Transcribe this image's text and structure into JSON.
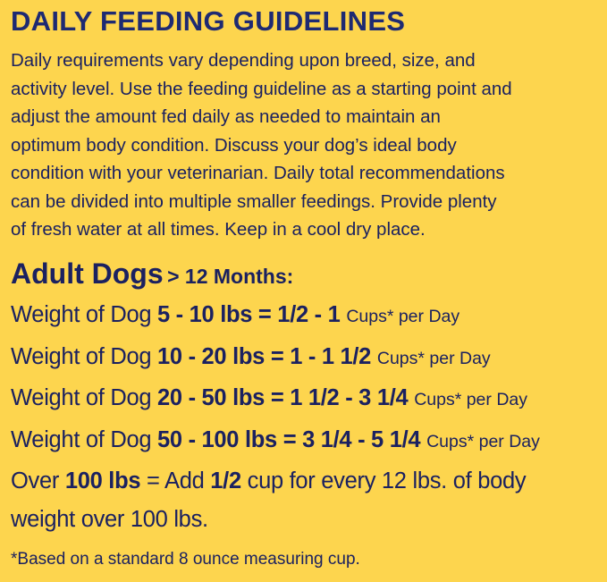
{
  "title": "DAILY FEEDING GUIDELINES",
  "paragraph": {
    "lines": [
      "Daily requirements vary depending upon breed, size, and",
      "activity level. Use the feeding guideline as a starting point and",
      "adjust the amount fed daily as needed to maintain an",
      "optimum body condition. Discuss your dog’s ideal body",
      "condition with your veterinarian. Daily total recommendations",
      "can be divided into multiple smaller feedings. Provide plenty",
      "of fresh water at all times. Keep in a cool dry place."
    ]
  },
  "heading": {
    "main": "Adult Dogs",
    "sub": "> 12 Months:"
  },
  "rows": [
    {
      "label": "Weight of Dog",
      "amount": "5 - 10 lbs = 1/2 - 1",
      "unit": "Cups* per Day"
    },
    {
      "label": "Weight of Dog",
      "amount": "10 - 20 lbs = 1 - 1 1/2",
      "unit": "Cups* per Day"
    },
    {
      "label": "Weight of Dog",
      "amount": "20 - 50 lbs = 1 1/2 - 3 1/4",
      "unit": "Cups* per Day"
    },
    {
      "label": "Weight of Dog",
      "amount": "50 - 100 lbs = 3 1/4 - 5 1/4",
      "unit": "Cups* per Day"
    }
  ],
  "over": {
    "label": "Over",
    "weight": "100 lbs",
    "middle": "= Add",
    "amount": "1/2",
    "rest": "cup for every 12 lbs. of body",
    "rest2": "weight over 100 lbs."
  },
  "footnote": "*Based on a standard 8 ounce measuring cup."
}
